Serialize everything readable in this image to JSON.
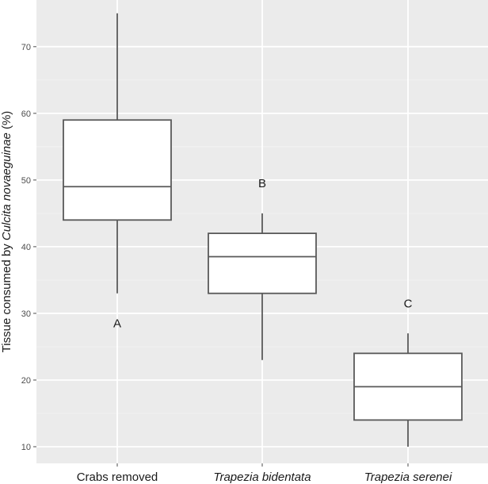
{
  "chart_data": {
    "type": "boxplot",
    "ylabel_parts": [
      {
        "text": "Tissue consumed by ",
        "italic": false
      },
      {
        "text": "Culcita novaeguinae",
        "italic": true
      },
      {
        "text": " (%)",
        "italic": false
      }
    ],
    "xlabel": "",
    "ylim": [
      7.5,
      77
    ],
    "yticks": [
      10,
      20,
      30,
      40,
      50,
      60,
      70
    ],
    "grid": true,
    "categories": [
      {
        "label": "Crabs removed",
        "italic": false
      },
      {
        "label": "Trapezia bidentata",
        "italic": true
      },
      {
        "label": "Trapezia serenei",
        "italic": true
      }
    ],
    "boxes": [
      {
        "min": 33,
        "q1": 44,
        "median": 49,
        "q3": 59,
        "max": 75
      },
      {
        "min": 23,
        "q1": 33,
        "median": 38.5,
        "q3": 42,
        "max": 45
      },
      {
        "min": 10,
        "q1": 14,
        "median": 19,
        "q3": 24,
        "max": 27
      }
    ],
    "annotations": [
      {
        "text": "A",
        "category_index": 0,
        "y": 28.5
      },
      {
        "text": "B",
        "category_index": 1,
        "y": 49.5
      },
      {
        "text": "C",
        "category_index": 2,
        "y": 31.5
      }
    ],
    "colors": {
      "panel": "#ebebeb",
      "grid": "#ffffff",
      "box_fill": "#ffffff",
      "box_stroke": "#595959"
    }
  }
}
